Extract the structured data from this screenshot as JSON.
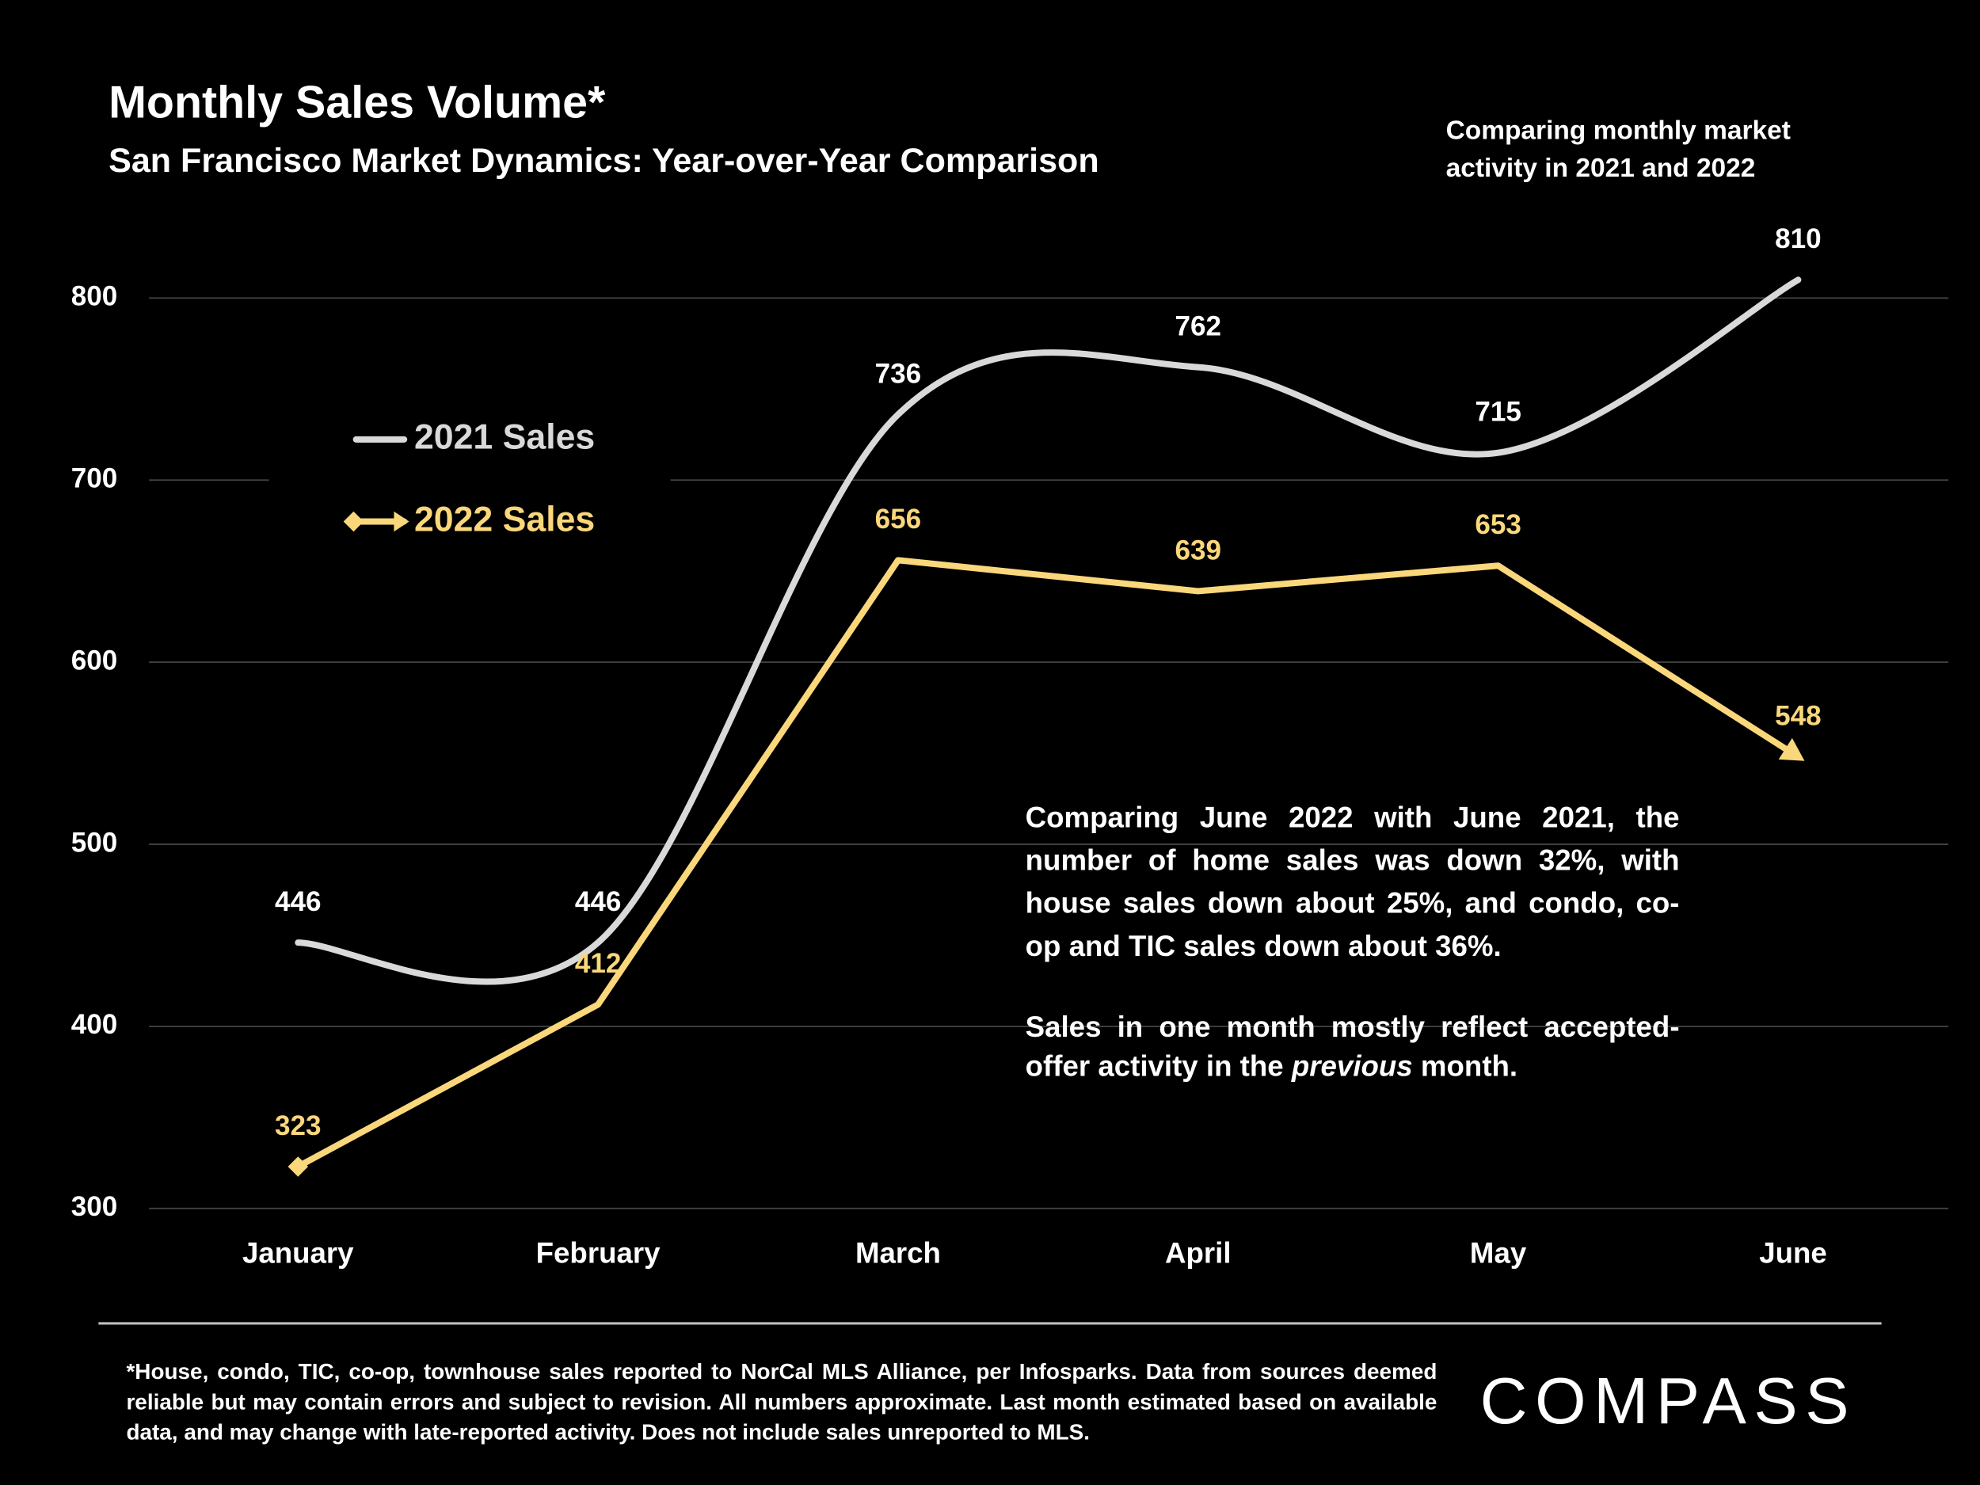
{
  "header": {
    "title": "Monthly Sales Volume*",
    "subtitle": "San Francisco Market Dynamics: Year-over-Year Comparison",
    "note": "Comparing monthly market activity in 2021 and 2022"
  },
  "chart_data": {
    "type": "line",
    "categories": [
      "January",
      "February",
      "March",
      "April",
      "May",
      "June"
    ],
    "series": [
      {
        "name": "2021 Sales",
        "color": "#d9d9d9",
        "smooth": true,
        "values": [
          446,
          446,
          736,
          762,
          715,
          810
        ]
      },
      {
        "name": "2022 Sales",
        "color": "#fad77b",
        "smooth": false,
        "values": [
          323,
          412,
          656,
          639,
          653,
          548
        ]
      }
    ],
    "ylim": [
      300,
      800
    ],
    "yticks": [
      300,
      400,
      500,
      600,
      700,
      800
    ],
    "grid": true
  },
  "annotation": {
    "paragraph_1": "Comparing June 2022 with June 2021, the number of home sales was down 32%, with house sales down about 25%, and condo, co-op and TIC sales down about 36%.",
    "paragraph_2": [
      "Sales in one month mostly reflect accepted-offer activity in the",
      "previous",
      "month."
    ]
  },
  "footnote": "*House, condo, TIC, co-op, townhouse sales reported to NorCal MLS Alliance, per Infosparks. Data from sources deemed reliable but may contain errors and subject to revision. All numbers approximate. Last month estimated based on available data, and may change with late-reported activity. Does not include sales unreported to MLS.",
  "logo": "COMPASS"
}
